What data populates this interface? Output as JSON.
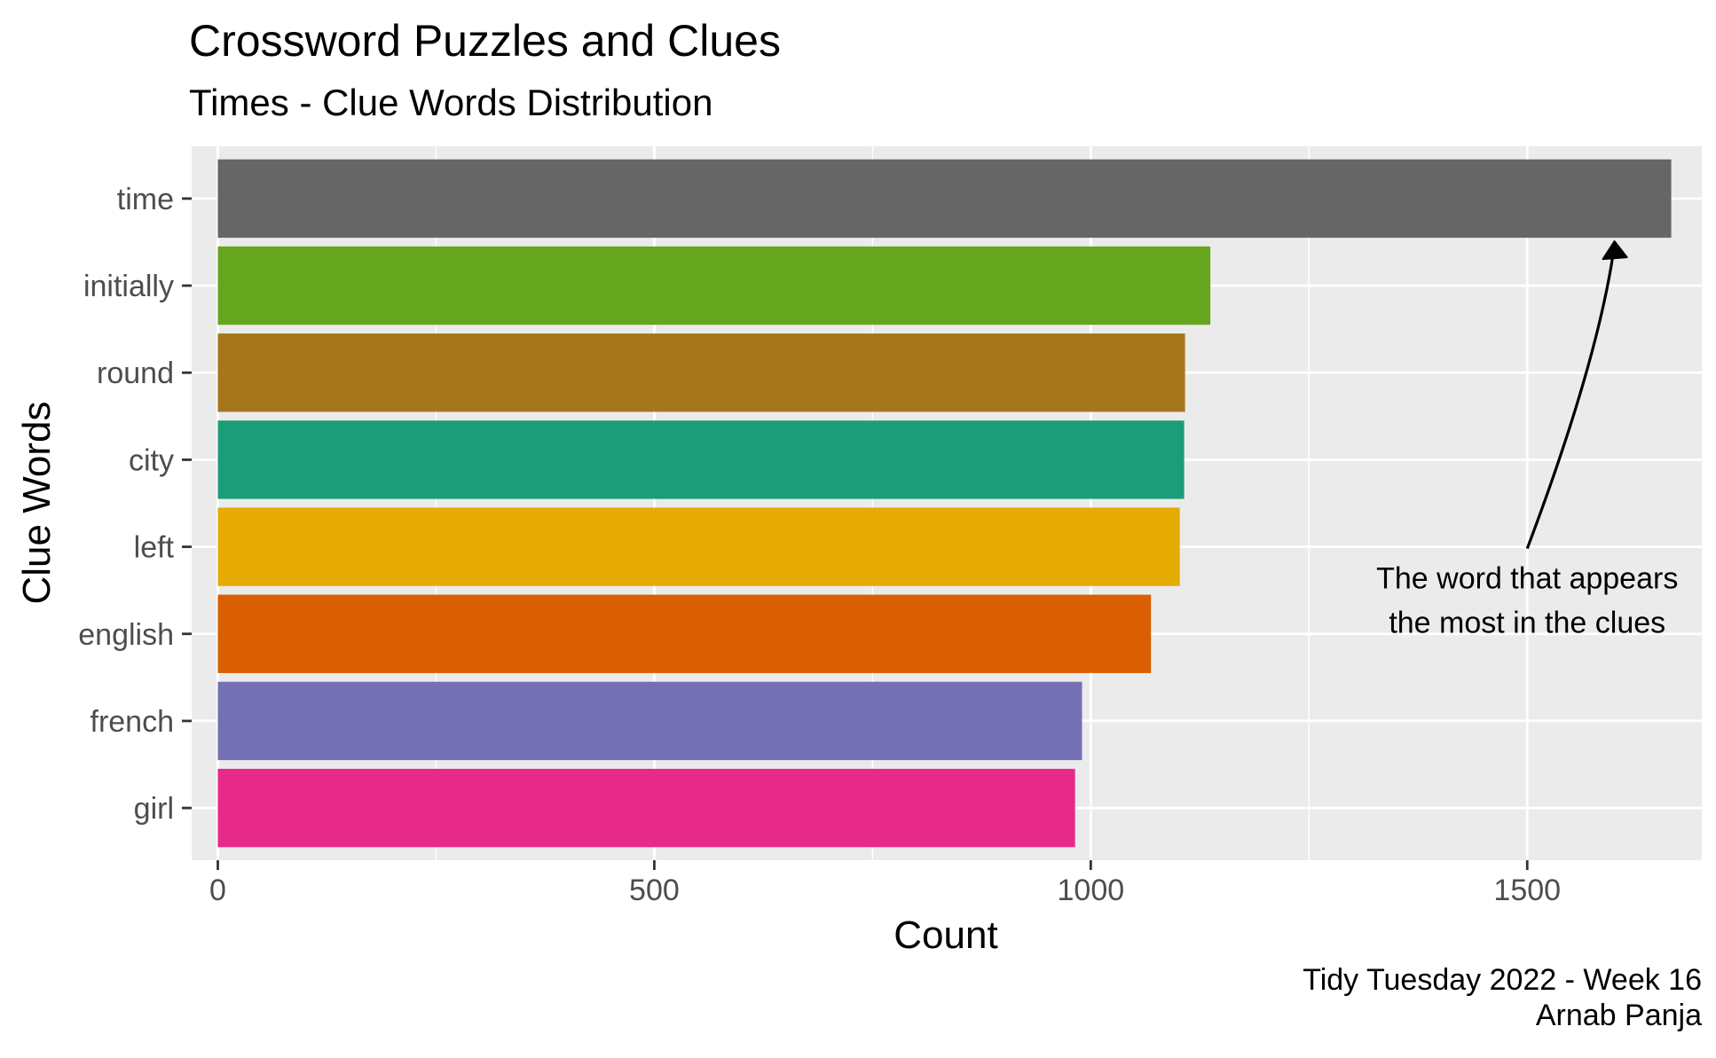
{
  "header": {
    "title": "Crossword Puzzles and Clues",
    "subtitle": "Times - Clue Words Distribution"
  },
  "caption": {
    "line1": "Tidy Tuesday 2022 - Week 16",
    "line2": "Arnab Panja"
  },
  "chart_data": {
    "type": "bar",
    "orientation": "horizontal",
    "title": "Crossword Puzzles and Clues",
    "subtitle": "Times - Clue Words Distribution",
    "xlabel": "Count",
    "ylabel": "Clue Words",
    "xlim": [
      -30,
      1700
    ],
    "x_ticks": [
      0,
      500,
      1000,
      1500
    ],
    "x_tick_labels": [
      "0",
      "500",
      "1000",
      "1500"
    ],
    "grid": true,
    "legend": "none",
    "categories": [
      "time",
      "initially",
      "round",
      "city",
      "left",
      "english",
      "french",
      "girl"
    ],
    "values": [
      1665,
      1137,
      1108,
      1107,
      1102,
      1069,
      990,
      982
    ],
    "colors": [
      "#666666",
      "#66A61E",
      "#A6761D",
      "#1B9E77",
      "#E6AB02",
      "#D95F02",
      "#7570B3",
      "#E7298A"
    ],
    "annotation": {
      "line1": "The word that appears",
      "line2": "the most in the clues",
      "points_to": "time"
    }
  }
}
